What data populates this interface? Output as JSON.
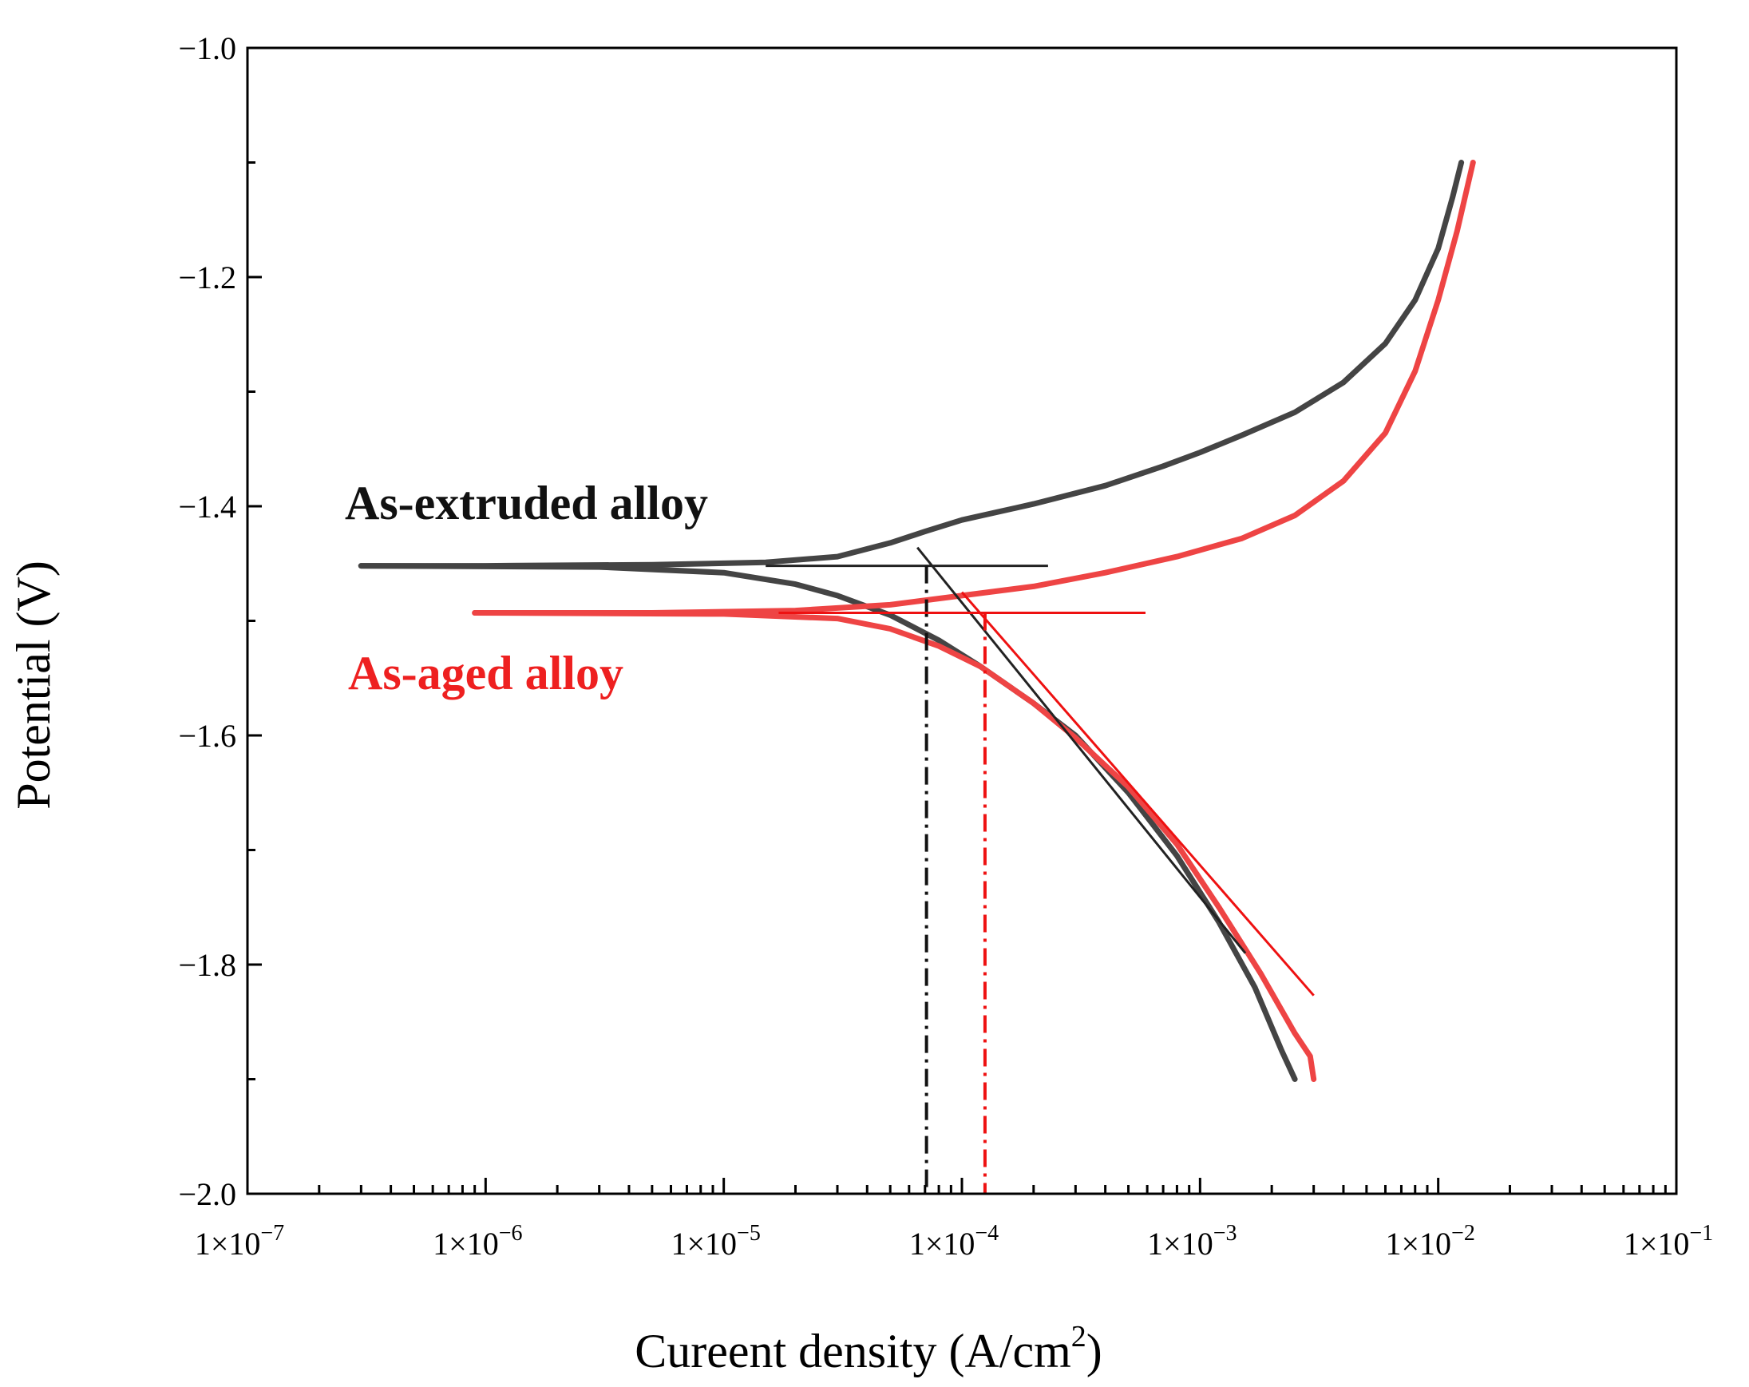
{
  "chart_data": {
    "type": "line",
    "xscale": "log",
    "xlabel": "Cureent density (A/cm",
    "xlabel_sup": "2",
    "xlabel_suffix": ")",
    "ylabel": "Potential (V)",
    "xlim": [
      1e-07,
      0.1
    ],
    "ylim": [
      -2.0,
      -1.0
    ],
    "xticks": [
      {
        "exp": -7,
        "base": "1×10",
        "sup": "−7"
      },
      {
        "exp": -6,
        "base": "1×10",
        "sup": "−6"
      },
      {
        "exp": -5,
        "base": "1×10",
        "sup": "−5"
      },
      {
        "exp": -4,
        "base": "1×10",
        "sup": "−4"
      },
      {
        "exp": -3,
        "base": "1×10",
        "sup": "−3"
      },
      {
        "exp": -2,
        "base": "1×10",
        "sup": "−2"
      },
      {
        "exp": -1,
        "base": "1×10",
        "sup": "−1"
      }
    ],
    "yticks": [
      {
        "value": -2.0,
        "label": "−2.0"
      },
      {
        "value": -1.8,
        "label": "−1.8"
      },
      {
        "value": -1.6,
        "label": "−1.6"
      },
      {
        "value": -1.4,
        "label": "−1.4"
      },
      {
        "value": -1.2,
        "label": "−1.2"
      },
      {
        "value": -1.0,
        "label": "−1.0"
      }
    ],
    "yminor": [
      -1.9,
      -1.7,
      -1.5,
      -1.3,
      -1.1
    ],
    "series": [
      {
        "name": "As-extruded alloy",
        "color": "#444444",
        "ecorr": -1.452,
        "icorr": 7.1e-05,
        "anodic": [
          [
            3e-07,
            -1.452
          ],
          [
            1e-06,
            -1.452
          ],
          [
            5e-06,
            -1.451
          ],
          [
            1.5e-05,
            -1.449
          ],
          [
            3e-05,
            -1.444
          ],
          [
            5e-05,
            -1.432
          ],
          [
            7e-05,
            -1.422
          ],
          [
            0.0001,
            -1.412
          ],
          [
            0.0002,
            -1.398
          ],
          [
            0.0004,
            -1.382
          ],
          [
            0.0007,
            -1.365
          ],
          [
            0.001,
            -1.353
          ],
          [
            0.0015,
            -1.338
          ],
          [
            0.0025,
            -1.318
          ],
          [
            0.004,
            -1.292
          ],
          [
            0.006,
            -1.258
          ],
          [
            0.008,
            -1.22
          ],
          [
            0.01,
            -1.175
          ],
          [
            0.0115,
            -1.13
          ],
          [
            0.0125,
            -1.1
          ]
        ],
        "cathodic": [
          [
            3e-07,
            -1.452
          ],
          [
            3e-06,
            -1.453
          ],
          [
            1e-05,
            -1.458
          ],
          [
            2e-05,
            -1.468
          ],
          [
            3e-05,
            -1.478
          ],
          [
            5e-05,
            -1.495
          ],
          [
            8e-05,
            -1.517
          ],
          [
            0.00012,
            -1.54
          ],
          [
            0.0002,
            -1.572
          ],
          [
            0.0003,
            -1.6
          ],
          [
            0.0005,
            -1.65
          ],
          [
            0.0008,
            -1.705
          ],
          [
            0.0012,
            -1.763
          ],
          [
            0.0017,
            -1.82
          ],
          [
            0.0022,
            -1.875
          ],
          [
            0.0025,
            -1.9
          ]
        ],
        "tafel_horizontal": [
          [
            1.5e-05,
            -1.452
          ],
          [
            0.00023,
            -1.452
          ]
        ],
        "tafel_slope": [
          [
            6.5e-05,
            -1.436
          ],
          [
            0.00155,
            -1.79
          ]
        ]
      },
      {
        "name": "As-aged alloy",
        "color": "#ee4444",
        "ecorr": -1.493,
        "icorr": 0.000125,
        "anodic": [
          [
            9e-07,
            -1.493
          ],
          [
            5e-06,
            -1.493
          ],
          [
            2e-05,
            -1.491
          ],
          [
            5e-05,
            -1.486
          ],
          [
            0.0001,
            -1.478
          ],
          [
            0.0002,
            -1.47
          ],
          [
            0.0004,
            -1.458
          ],
          [
            0.0008,
            -1.444
          ],
          [
            0.0015,
            -1.428
          ],
          [
            0.0025,
            -1.408
          ],
          [
            0.004,
            -1.378
          ],
          [
            0.006,
            -1.336
          ],
          [
            0.008,
            -1.282
          ],
          [
            0.01,
            -1.22
          ],
          [
            0.012,
            -1.16
          ],
          [
            0.014,
            -1.1
          ]
        ],
        "cathodic": [
          [
            9e-07,
            -1.493
          ],
          [
            1e-05,
            -1.494
          ],
          [
            3e-05,
            -1.498
          ],
          [
            5e-05,
            -1.507
          ],
          [
            8e-05,
            -1.522
          ],
          [
            0.00012,
            -1.54
          ],
          [
            0.0002,
            -1.572
          ],
          [
            0.0003,
            -1.602
          ],
          [
            0.0005,
            -1.645
          ],
          [
            0.0008,
            -1.695
          ],
          [
            0.0012,
            -1.75
          ],
          [
            0.0018,
            -1.808
          ],
          [
            0.0025,
            -1.86
          ],
          [
            0.0029,
            -1.88
          ],
          [
            0.003,
            -1.9
          ]
        ],
        "tafel_horizontal": [
          [
            1.7e-05,
            -1.493
          ],
          [
            0.00059,
            -1.493
          ]
        ],
        "tafel_slope": [
          [
            0.0001,
            -1.475
          ],
          [
            0.003,
            -1.827
          ]
        ]
      }
    ],
    "annotations": [
      {
        "text": "As-extruded alloy",
        "color": "#111111"
      },
      {
        "text": "As-aged alloy",
        "color": "#ee2020"
      }
    ]
  }
}
